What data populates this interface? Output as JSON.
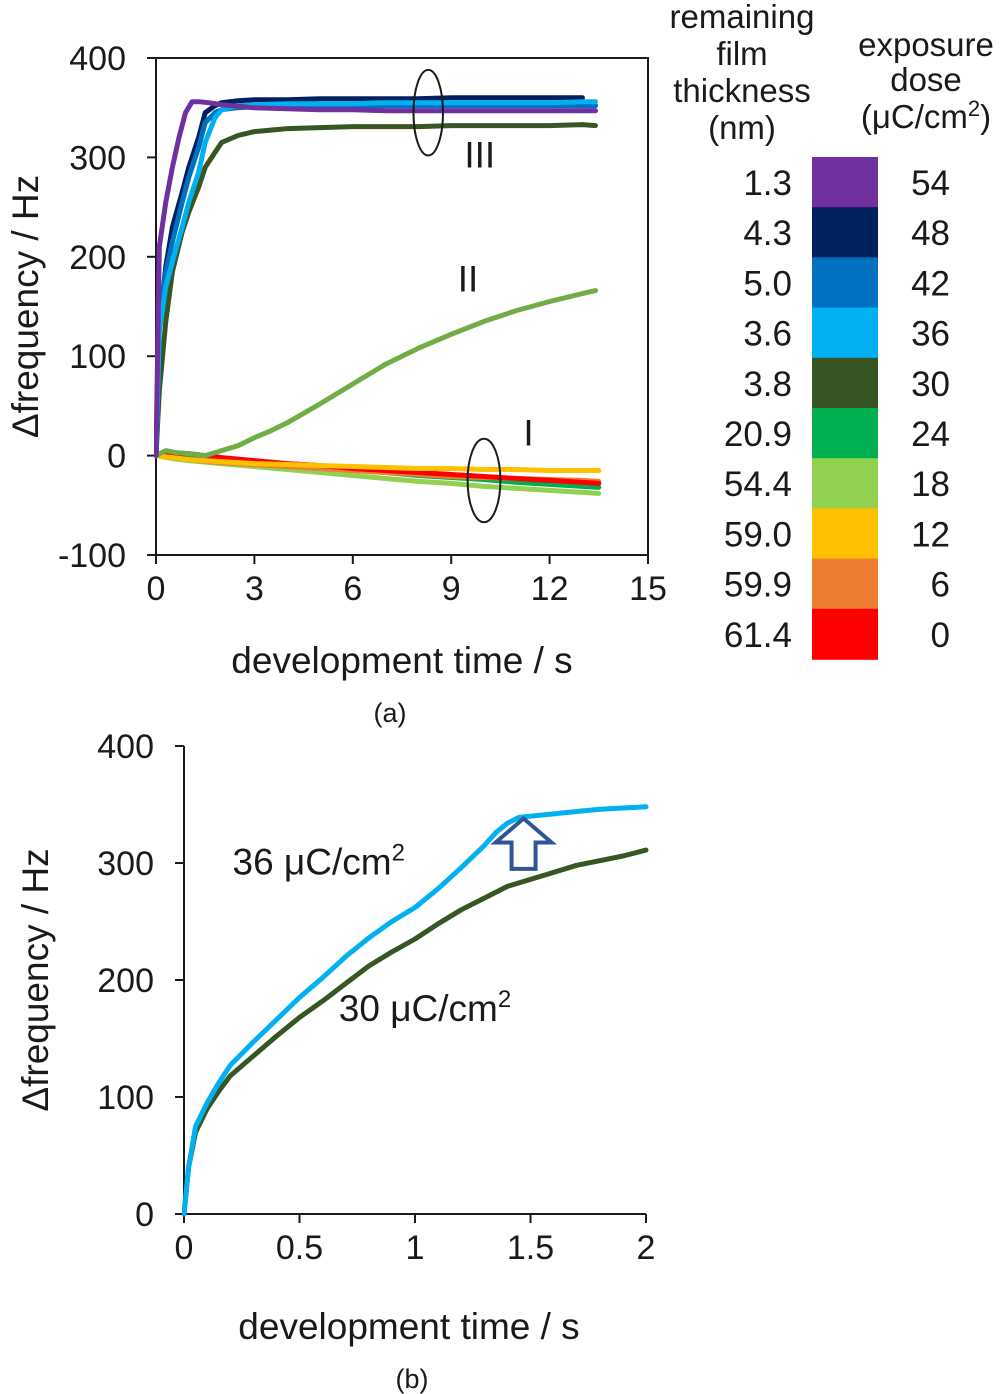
{
  "chart_data": [
    {
      "panel": "(a)",
      "type": "line",
      "xlabel": "development time / s",
      "ylabel": "Δfrequency / Hz",
      "xlim": [
        0,
        15
      ],
      "ylim": [
        -100,
        400
      ],
      "xticks": [
        0,
        3,
        6,
        9,
        12,
        15
      ],
      "yticks": [
        -100,
        0,
        100,
        200,
        300,
        400
      ],
      "grid": false,
      "legend": {
        "position": "right",
        "header_thickness": "remaining film thickness (nm)",
        "header_dose_line1": "exposure",
        "header_dose_line2": "dose",
        "header_dose_unit": "(μC/cm",
        "header_dose_sup": "2",
        "header_dose_close": ")",
        "rows": [
          {
            "thickness": "1.3",
            "dose": "54",
            "color": "#7030a0"
          },
          {
            "thickness": "4.3",
            "dose": "48",
            "color": "#002060"
          },
          {
            "thickness": "5.0",
            "dose": "42",
            "color": "#0070c0"
          },
          {
            "thickness": "3.6",
            "dose": "36",
            "color": "#00b0f0"
          },
          {
            "thickness": "3.8",
            "dose": "30",
            "color": "#375623"
          },
          {
            "thickness": "20.9",
            "dose": "24",
            "color": "#00b050"
          },
          {
            "thickness": "54.4",
            "dose": "18",
            "color": "#92d050"
          },
          {
            "thickness": "59.0",
            "dose": "12",
            "color": "#ffc000"
          },
          {
            "thickness": "59.9",
            "dose": "6",
            "color": "#ed7d31"
          },
          {
            "thickness": "61.4",
            "dose": "0",
            "color": "#ff0000"
          }
        ]
      },
      "annotations": [
        {
          "text": "III",
          "x": 9.4,
          "y": 290
        },
        {
          "text": "II",
          "x": 9.2,
          "y": 165
        },
        {
          "text": "I",
          "x": 11.2,
          "y": 10
        }
      ],
      "ellipses": [
        {
          "cx": 8.3,
          "cy": 345,
          "rx": 0.45,
          "ry": 43
        },
        {
          "cx": 10.0,
          "cy": -25,
          "rx": 0.5,
          "ry": 42
        }
      ],
      "series": [
        {
          "dose": "24",
          "color": "#00b050",
          "x": [
            0,
            0.5,
            1,
            2,
            3,
            4,
            5,
            6,
            7,
            8,
            9,
            10,
            11,
            12,
            13,
            13.5
          ],
          "y": [
            0,
            -2,
            -3,
            -6,
            -8,
            -10,
            -13,
            -15,
            -17,
            -20,
            -22,
            -24,
            -27,
            -29,
            -31,
            -32
          ]
        },
        {
          "dose": "18",
          "color": "#92d050",
          "x": [
            0,
            0.5,
            1,
            2,
            3,
            4,
            5,
            6,
            7,
            8,
            9,
            10,
            11,
            12,
            13,
            13.5
          ],
          "y": [
            0,
            -3,
            -5,
            -8,
            -11,
            -14,
            -17,
            -20,
            -23,
            -26,
            -28,
            -31,
            -33,
            -35,
            -37,
            -38
          ]
        },
        {
          "dose": "6",
          "color": "#ed7d31",
          "x": [
            0,
            0.5,
            1,
            2,
            3,
            4,
            5,
            6,
            7,
            8,
            9,
            10,
            11,
            12,
            13,
            13.5
          ],
          "y": [
            0,
            -2,
            -4,
            -7,
            -9,
            -11,
            -13,
            -15,
            -17,
            -19,
            -21,
            -22,
            -23,
            -24,
            -25,
            -26
          ]
        },
        {
          "dose": "0",
          "color": "#ff0000",
          "x": [
            0,
            0.5,
            1,
            2,
            3,
            4,
            5,
            6,
            7,
            8,
            9,
            10,
            11,
            12,
            13,
            13.5
          ],
          "y": [
            0,
            2,
            2,
            -2,
            -5,
            -8,
            -10,
            -13,
            -15,
            -17,
            -19,
            -21,
            -23,
            -25,
            -27,
            -28
          ]
        },
        {
          "dose": "12",
          "color": "#ffc000",
          "x": [
            0,
            0.5,
            1,
            2,
            3,
            4,
            5,
            6,
            7,
            8,
            9,
            10,
            11,
            12,
            13,
            13.5
          ],
          "y": [
            0,
            -2,
            -4,
            -6,
            -8,
            -9,
            -10,
            -11,
            -12,
            -13,
            -13,
            -14,
            -14,
            -15,
            -15,
            -15
          ]
        },
        {
          "dose": "II (18)",
          "color": "#70ad47",
          "x": [
            0,
            0.3,
            0.6,
            1,
            1.5,
            2,
            2.5,
            3,
            3.5,
            4,
            5,
            6,
            7,
            8,
            9,
            10,
            11,
            12,
            13,
            13.4
          ],
          "y": [
            0,
            5,
            3,
            2,
            0,
            5,
            10,
            18,
            25,
            33,
            52,
            72,
            92,
            108,
            122,
            135,
            146,
            155,
            163,
            166
          ]
        },
        {
          "dose": "30",
          "color": "#375623",
          "x": [
            0,
            0.1,
            0.3,
            0.5,
            0.8,
            1,
            1.3,
            1.5,
            1.8,
            2,
            2.5,
            3,
            4,
            5,
            6,
            7,
            8,
            9,
            10,
            11,
            12,
            13,
            13.4
          ],
          "y": [
            0,
            65,
            135,
            185,
            225,
            245,
            270,
            290,
            305,
            315,
            322,
            326,
            329,
            330,
            331,
            331,
            331,
            332,
            332,
            332,
            332,
            333,
            332
          ]
        },
        {
          "dose": "48",
          "color": "#002060",
          "x": [
            0,
            0.1,
            0.3,
            0.5,
            0.8,
            1,
            1.3,
            1.5,
            1.8,
            2,
            2.5,
            3,
            4,
            5,
            6,
            7,
            8,
            9,
            10,
            11,
            12,
            13
          ],
          "y": [
            0,
            130,
            190,
            230,
            265,
            290,
            320,
            345,
            352,
            355,
            357,
            358,
            358,
            359,
            359,
            359,
            359,
            360,
            360,
            360,
            360,
            360
          ]
        },
        {
          "dose": "42",
          "color": "#0070c0",
          "x": [
            0,
            0.1,
            0.3,
            0.5,
            0.8,
            1,
            1.3,
            1.5,
            1.8,
            2,
            2.5,
            3,
            4,
            5,
            6,
            7,
            8,
            9,
            10,
            11,
            12,
            13,
            13.4
          ],
          "y": [
            0,
            140,
            185,
            215,
            255,
            280,
            310,
            335,
            345,
            348,
            350,
            351,
            351,
            352,
            352,
            352,
            352,
            352,
            352,
            352,
            352,
            352,
            352
          ]
        },
        {
          "dose": "36",
          "color": "#00b0f0",
          "x": [
            0,
            0.1,
            0.3,
            0.5,
            0.8,
            1,
            1.3,
            1.5,
            1.8,
            2,
            2.5,
            3,
            4,
            5,
            6,
            7,
            8,
            9,
            10,
            11,
            12,
            13,
            13.4
          ],
          "y": [
            0,
            125,
            170,
            195,
            230,
            255,
            285,
            315,
            340,
            348,
            352,
            353,
            354,
            354,
            354,
            355,
            355,
            355,
            355,
            355,
            355,
            356,
            356
          ]
        },
        {
          "dose": "54",
          "color": "#7030a0",
          "x": [
            0,
            0.1,
            0.3,
            0.5,
            0.7,
            0.9,
            1.1,
            1.3,
            1.6,
            2,
            3,
            4,
            5,
            6,
            7,
            8,
            9,
            10,
            11,
            12,
            13,
            13.4
          ],
          "y": [
            0,
            210,
            255,
            290,
            320,
            345,
            356,
            356,
            355,
            353,
            350,
            349,
            348,
            348,
            347,
            347,
            347,
            347,
            347,
            347,
            347,
            347
          ]
        }
      ]
    },
    {
      "panel": "(b)",
      "type": "line",
      "xlabel": "development time / s",
      "ylabel": "Δfrequency / Hz",
      "xlim": [
        0,
        2
      ],
      "ylim": [
        0,
        400
      ],
      "xticks": [
        0,
        0.5,
        1,
        1.5,
        2
      ],
      "xticklabels": [
        "0",
        "0.5",
        "1",
        "1.5",
        "2"
      ],
      "yticks": [
        0,
        100,
        200,
        300,
        400
      ],
      "grid": false,
      "annotations": [
        {
          "text": "36 μC/cm",
          "sup": "2",
          "x": 0.21,
          "y": 290
        },
        {
          "text": "30 μC/cm",
          "sup": "2",
          "x": 0.67,
          "y": 165
        }
      ],
      "arrow": {
        "x": 1.47,
        "y_tip": 338,
        "y_base": 295,
        "color": "#2f5597"
      },
      "series": [
        {
          "name": "30 μC/cm2",
          "color": "#375623",
          "x": [
            0,
            0.02,
            0.05,
            0.1,
            0.15,
            0.2,
            0.3,
            0.4,
            0.5,
            0.6,
            0.7,
            0.8,
            0.9,
            1.0,
            1.1,
            1.2,
            1.3,
            1.4,
            1.5,
            1.6,
            1.7,
            1.8,
            1.9,
            2.0
          ],
          "y": [
            0,
            40,
            70,
            90,
            105,
            118,
            135,
            152,
            168,
            182,
            197,
            212,
            224,
            235,
            248,
            260,
            270,
            280,
            286,
            292,
            298,
            302,
            306,
            311
          ]
        },
        {
          "name": "36 μC/cm2",
          "color": "#00b0f0",
          "x": [
            0,
            0.02,
            0.05,
            0.1,
            0.15,
            0.2,
            0.3,
            0.4,
            0.5,
            0.6,
            0.7,
            0.8,
            0.9,
            1.0,
            1.1,
            1.2,
            1.3,
            1.35,
            1.4,
            1.45,
            1.5,
            1.6,
            1.7,
            1.8,
            1.9,
            2.0
          ],
          "y": [
            0,
            40,
            75,
            95,
            112,
            127,
            147,
            166,
            185,
            202,
            220,
            236,
            250,
            262,
            278,
            296,
            315,
            326,
            334,
            339,
            340,
            342,
            344,
            346,
            347,
            348
          ]
        }
      ]
    }
  ],
  "captions": {
    "a": "(a)",
    "b": "(b)"
  }
}
